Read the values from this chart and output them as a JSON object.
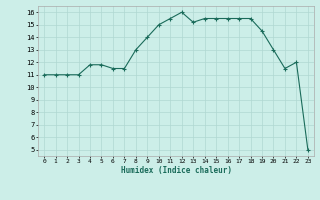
{
  "x": [
    0,
    1,
    2,
    3,
    4,
    5,
    6,
    7,
    8,
    9,
    10,
    11,
    12,
    13,
    14,
    15,
    16,
    17,
    18,
    19,
    20,
    21,
    22,
    23
  ],
  "y": [
    11,
    11,
    11,
    11,
    11.8,
    11.8,
    11.5,
    11.5,
    13,
    14,
    15,
    15.5,
    16,
    15.2,
    15.5,
    15.5,
    15.5,
    15.5,
    15.5,
    14.5,
    13,
    11.5,
    12,
    5
  ],
  "line_color": "#1a6b5a",
  "marker": "+",
  "bg_color": "#cceee8",
  "grid_color": "#b0d8d2",
  "xlabel": "Humidex (Indice chaleur)",
  "ylabel_ticks": [
    5,
    6,
    7,
    8,
    9,
    10,
    11,
    12,
    13,
    14,
    15,
    16
  ],
  "xlim": [
    -0.5,
    23.5
  ],
  "ylim": [
    4.5,
    16.5
  ]
}
